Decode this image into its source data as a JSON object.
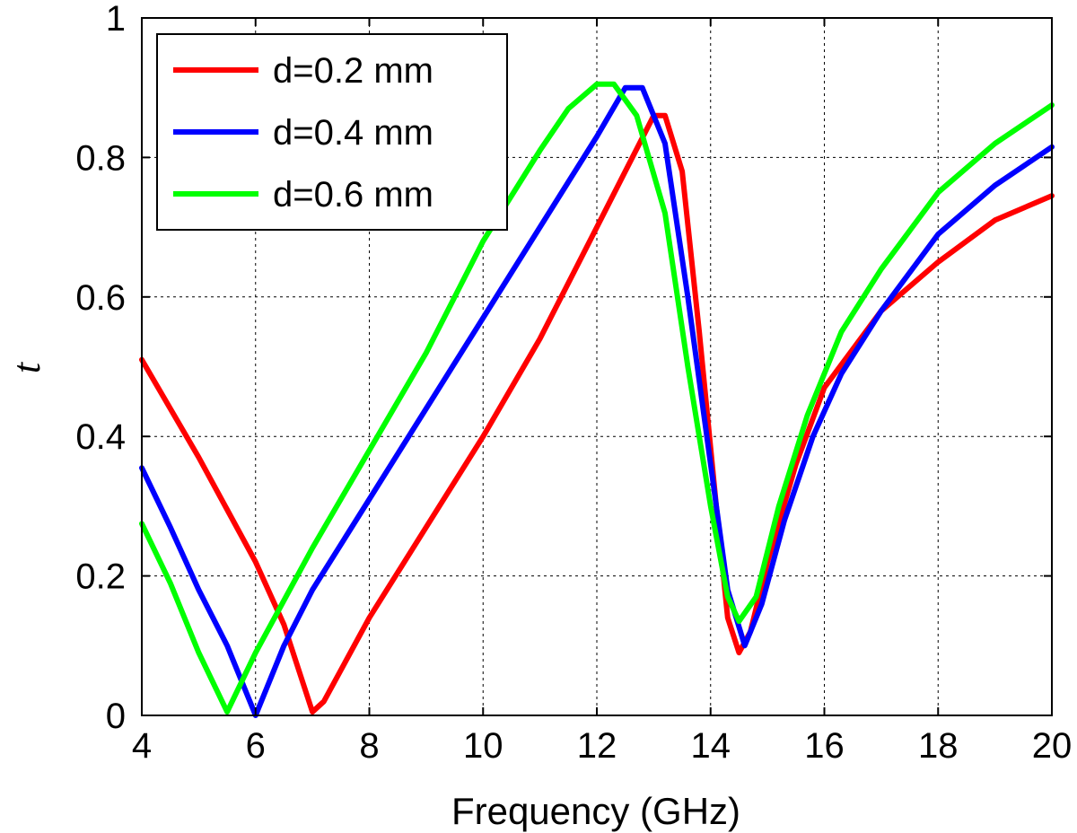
{
  "chart_data": {
    "type": "line",
    "title": "",
    "xlabel": "Frequency (GHz)",
    "ylabel": "t",
    "xlim": [
      4,
      20
    ],
    "ylim": [
      0,
      1
    ],
    "xticks": [
      4,
      6,
      8,
      10,
      12,
      14,
      16,
      18,
      20
    ],
    "yticks": [
      0,
      0.2,
      0.4,
      0.6,
      0.8,
      1
    ],
    "xtick_labels": [
      "4",
      "6",
      "8",
      "10",
      "12",
      "14",
      "16",
      "18",
      "20"
    ],
    "ytick_labels": [
      "0",
      "0.2",
      "0.4",
      "0.6",
      "0.8",
      "1"
    ],
    "grid": true,
    "legend_position": "top-left",
    "series": [
      {
        "name": "d=0.2 mm",
        "color": "#ff0000",
        "points": [
          [
            4.0,
            0.51
          ],
          [
            5.0,
            0.37
          ],
          [
            6.0,
            0.22
          ],
          [
            6.5,
            0.13
          ],
          [
            7.0,
            0.005
          ],
          [
            7.2,
            0.02
          ],
          [
            8.0,
            0.14
          ],
          [
            9.0,
            0.27
          ],
          [
            10.0,
            0.4
          ],
          [
            11.0,
            0.54
          ],
          [
            12.0,
            0.7
          ],
          [
            12.5,
            0.78
          ],
          [
            13.0,
            0.86
          ],
          [
            13.2,
            0.86
          ],
          [
            13.5,
            0.78
          ],
          [
            13.8,
            0.55
          ],
          [
            14.1,
            0.3
          ],
          [
            14.3,
            0.14
          ],
          [
            14.5,
            0.09
          ],
          [
            14.7,
            0.12
          ],
          [
            15.0,
            0.22
          ],
          [
            15.5,
            0.36
          ],
          [
            16.0,
            0.47
          ],
          [
            17.0,
            0.58
          ],
          [
            18.0,
            0.65
          ],
          [
            19.0,
            0.71
          ],
          [
            20.0,
            0.745
          ]
        ]
      },
      {
        "name": "d=0.4 mm",
        "color": "#0000ff",
        "points": [
          [
            4.0,
            0.355
          ],
          [
            4.5,
            0.27
          ],
          [
            5.0,
            0.18
          ],
          [
            5.5,
            0.1
          ],
          [
            6.0,
            0.0
          ],
          [
            6.5,
            0.1
          ],
          [
            7.0,
            0.18
          ],
          [
            8.0,
            0.31
          ],
          [
            9.0,
            0.44
          ],
          [
            10.0,
            0.57
          ],
          [
            11.0,
            0.7
          ],
          [
            12.0,
            0.83
          ],
          [
            12.5,
            0.9
          ],
          [
            12.8,
            0.9
          ],
          [
            13.2,
            0.82
          ],
          [
            13.6,
            0.6
          ],
          [
            14.0,
            0.36
          ],
          [
            14.3,
            0.18
          ],
          [
            14.6,
            0.1
          ],
          [
            14.9,
            0.16
          ],
          [
            15.3,
            0.28
          ],
          [
            15.8,
            0.4
          ],
          [
            16.3,
            0.49
          ],
          [
            17.0,
            0.58
          ],
          [
            18.0,
            0.69
          ],
          [
            19.0,
            0.76
          ],
          [
            20.0,
            0.815
          ]
        ]
      },
      {
        "name": "d=0.6 mm",
        "color": "#00ff00",
        "points": [
          [
            4.0,
            0.275
          ],
          [
            4.5,
            0.19
          ],
          [
            5.0,
            0.09
          ],
          [
            5.5,
            0.005
          ],
          [
            6.0,
            0.09
          ],
          [
            7.0,
            0.24
          ],
          [
            8.0,
            0.38
          ],
          [
            9.0,
            0.52
          ],
          [
            10.0,
            0.68
          ],
          [
            11.0,
            0.81
          ],
          [
            11.5,
            0.87
          ],
          [
            12.0,
            0.905
          ],
          [
            12.3,
            0.905
          ],
          [
            12.7,
            0.86
          ],
          [
            13.2,
            0.72
          ],
          [
            13.6,
            0.5
          ],
          [
            14.0,
            0.3
          ],
          [
            14.3,
            0.17
          ],
          [
            14.5,
            0.135
          ],
          [
            14.8,
            0.17
          ],
          [
            15.2,
            0.3
          ],
          [
            15.7,
            0.43
          ],
          [
            16.3,
            0.55
          ],
          [
            17.0,
            0.64
          ],
          [
            18.0,
            0.75
          ],
          [
            19.0,
            0.82
          ],
          [
            20.0,
            0.875
          ]
        ]
      }
    ]
  }
}
